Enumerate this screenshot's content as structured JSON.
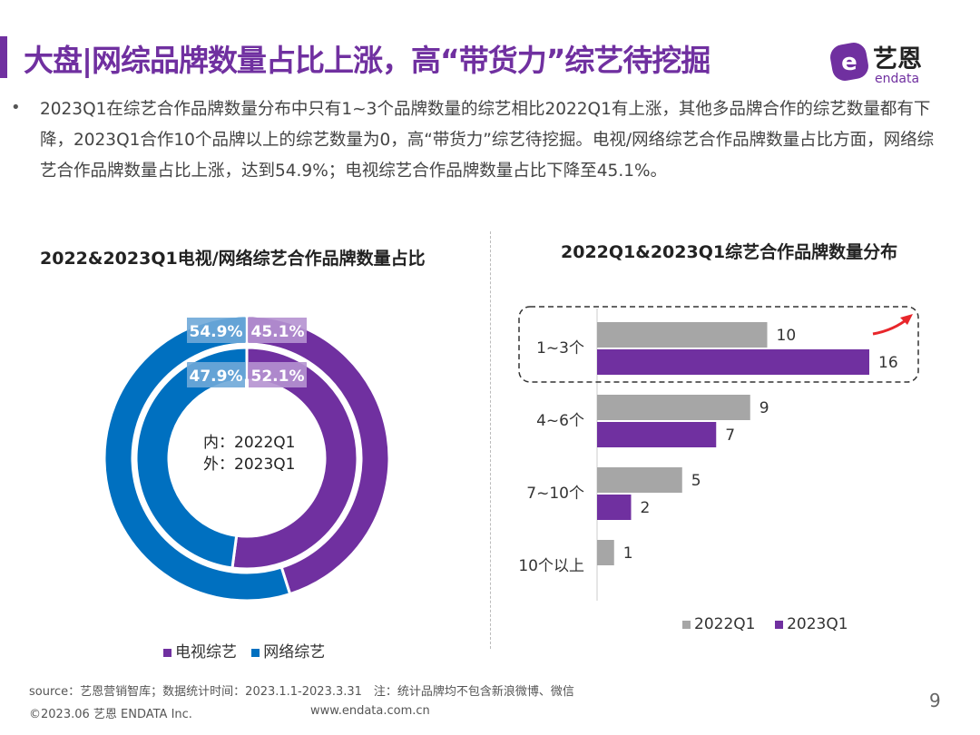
{
  "header": {
    "title": "大盘|网综品牌数量占比上涨，高“带货力”综艺待挖掘",
    "logo_cn": "艺恩",
    "logo_en": "endata"
  },
  "body_text": "2023Q1在综艺合作品牌数量分布中只有1~3个品牌数量的综艺相比2022Q1有上涨，其他多品牌合作的综艺数量都有下降，2023Q1合作10个品牌以上的综艺数量为0，高“带货力”综艺待挖掘。电视/网络综艺合作品牌数量占比方面，网络综艺合作品牌数量占比上涨，达到54.9%；电视综艺合作品牌数量占比下降至45.1%。",
  "bullet": "•",
  "colors": {
    "tv": "#7030A0",
    "web": "#0070C0",
    "gray": "#A6A6A6",
    "label_tv": "#B592D0",
    "label_web": "#6FA8D8"
  },
  "chart_data": [
    {
      "type": "pie",
      "variant": "double-donut",
      "title": "2022&2023Q1电视/网络综艺合作品牌数量占比",
      "center_labels": [
        "内：2022Q1",
        "外：2023Q1"
      ],
      "legend": [
        "电视综艺",
        "网络综艺"
      ],
      "legend_placement": "bottom",
      "rings": [
        {
          "name": "2022Q1",
          "position": "inner",
          "values": [
            {
              "label": "电视综艺",
              "value": 52.1,
              "text": "52.1%"
            },
            {
              "label": "网络综艺",
              "value": 47.9,
              "text": "47.9%"
            }
          ]
        },
        {
          "name": "2023Q1",
          "position": "outer",
          "values": [
            {
              "label": "电视综艺",
              "value": 45.1,
              "text": "45.1%"
            },
            {
              "label": "网络综艺",
              "value": 54.9,
              "text": "54.9%"
            }
          ]
        }
      ]
    },
    {
      "type": "bar",
      "orientation": "horizontal",
      "title": "2022Q1&2023Q1综艺合作品牌数量分布",
      "categories": [
        "1~3个",
        "4~6个",
        "7~10个",
        "10个以上"
      ],
      "series": [
        {
          "name": "2022Q1",
          "values": [
            10,
            9,
            5,
            1
          ]
        },
        {
          "name": "2023Q1",
          "values": [
            16,
            7,
            2,
            0
          ]
        }
      ],
      "xlim": [
        0,
        16
      ],
      "grid": false,
      "legend_placement": "bottom",
      "highlight": "1~3个"
    }
  ],
  "footer": {
    "source": "source：艺恩营销智库；数据统计时间：2023.1.1-2023.3.31　注：统计品牌均不包含新浪微博、微信",
    "copyright": "©2023.06 艺恩 ENDATA Inc.",
    "url": "www.endata.com.cn",
    "page": "9"
  }
}
